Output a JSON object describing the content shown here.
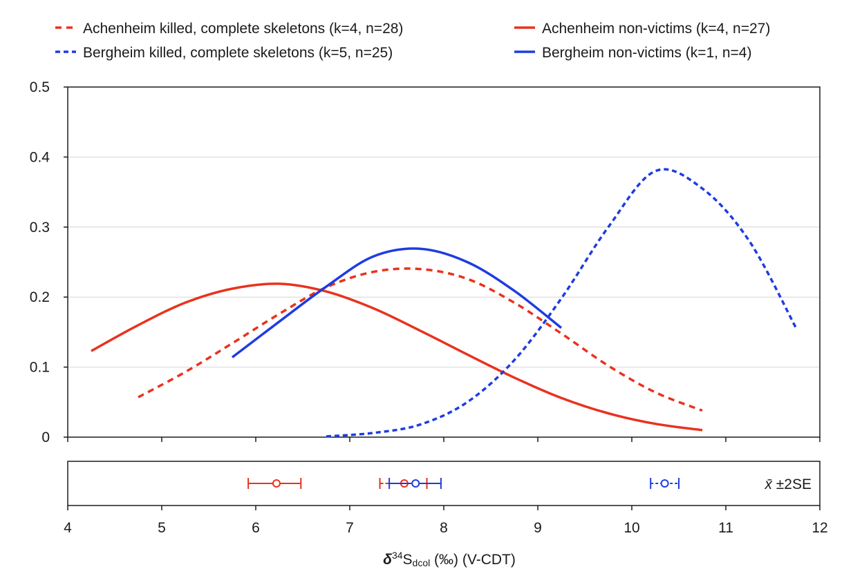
{
  "chart_data": {
    "type": "line",
    "xlabel": {
      "delta": "δ",
      "sup": "34",
      "S": "S",
      "sub": "dcol",
      "rest": " (‰) (V-CDT)"
    },
    "ylabel": "",
    "xlim": [
      4,
      12
    ],
    "ylim": [
      0,
      0.5
    ],
    "x_ticks": [
      "4",
      "5",
      "6",
      "7",
      "8",
      "9",
      "10",
      "11",
      "12"
    ],
    "y_ticks": [
      "0",
      "0.1",
      "0.2",
      "0.3",
      "0.4",
      "0.5"
    ],
    "grid": "horizontal",
    "legend_position": "top",
    "series": [
      {
        "name": "Achenheim killed, complete skeletons (k=4, n=28)",
        "color": "#e8321e",
        "dash": "dashed",
        "x": [
          4.75,
          5.25,
          5.75,
          6.25,
          6.75,
          7.25,
          7.75,
          8.25,
          8.75,
          9.25,
          9.75,
          10.25,
          10.75
        ],
        "y": [
          0.057,
          0.093,
          0.134,
          0.176,
          0.214,
          0.236,
          0.24,
          0.226,
          0.192,
          0.148,
          0.102,
          0.064,
          0.038
        ]
      },
      {
        "name": "Achenheim non-victims (k=4, n=27)",
        "color": "#e8321e",
        "dash": "solid",
        "x": [
          4.25,
          4.75,
          5.25,
          5.75,
          6.25,
          6.75,
          7.25,
          7.75,
          8.25,
          8.75,
          9.25,
          9.75,
          10.25,
          10.75
        ],
        "y": [
          0.123,
          0.16,
          0.192,
          0.212,
          0.219,
          0.208,
          0.184,
          0.152,
          0.118,
          0.085,
          0.056,
          0.034,
          0.019,
          0.01
        ]
      },
      {
        "name": "Bergheim killed, complete skeletons (k=5, n=25)",
        "color": "#1e3ce0",
        "dash": "dotted",
        "x": [
          6.75,
          7.25,
          7.75,
          8.25,
          8.75,
          9.25,
          9.75,
          10.25,
          10.75,
          11.25,
          11.75
        ],
        "y": [
          0.001,
          0.006,
          0.018,
          0.05,
          0.11,
          0.198,
          0.3,
          0.38,
          0.355,
          0.28,
          0.155
        ]
      },
      {
        "name": "Bergheim non-victims (k=1, n=4)",
        "color": "#1e3ce0",
        "dash": "solid",
        "x": [
          5.75,
          6.25,
          6.75,
          7.25,
          7.75,
          8.25,
          8.75,
          9.25
        ],
        "y": [
          0.114,
          0.165,
          0.215,
          0.258,
          0.269,
          0.25,
          0.209,
          0.156
        ]
      }
    ],
    "mean_panel": {
      "label_symbol": "x̄",
      "label_rest": " ±2SE",
      "markers": [
        {
          "mean": 6.22,
          "low": 5.92,
          "high": 6.48,
          "color": "#e8321e",
          "dash": "solid"
        },
        {
          "mean": 7.58,
          "low": 7.32,
          "high": 7.82,
          "color": "#e8321e",
          "dash": "dashed"
        },
        {
          "mean": 7.7,
          "low": 7.42,
          "high": 7.97,
          "color": "#1e3ce0",
          "dash": "solid"
        },
        {
          "mean": 10.35,
          "low": 10.2,
          "high": 10.5,
          "color": "#1e3ce0",
          "dash": "dotted"
        }
      ]
    }
  }
}
